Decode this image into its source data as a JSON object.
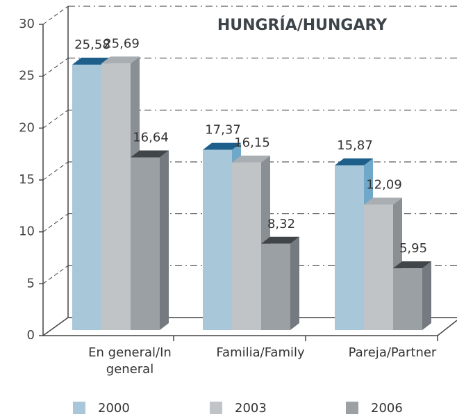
{
  "chart_data": {
    "type": "bar3d",
    "title": "HUNGRÍA/HUNGARY",
    "categories": [
      "En general/In general",
      "Familia/Family",
      "Pareja/Partner"
    ],
    "series": [
      {
        "name": "2000",
        "color": "#a8c8da",
        "values": [
          25.58,
          17.37,
          15.87
        ],
        "value_labels": [
          "25,58",
          "17,37",
          "15,87"
        ]
      },
      {
        "name": "2003",
        "color": "#c1c4c7",
        "values": [
          25.69,
          16.15,
          12.09
        ],
        "value_labels": [
          "25,69",
          "16,15",
          "12,09"
        ]
      },
      {
        "name": "2006",
        "color": "#9ba0a4",
        "values": [
          16.64,
          8.32,
          5.95
        ],
        "value_labels": [
          "16,64",
          "8,32",
          "5,95"
        ]
      }
    ],
    "ylim": [
      0,
      30
    ],
    "yticks": [
      0,
      5,
      10,
      15,
      20,
      25,
      30
    ],
    "grid": true
  }
}
